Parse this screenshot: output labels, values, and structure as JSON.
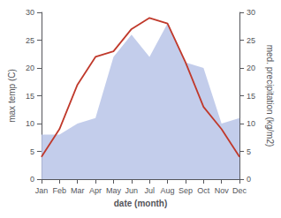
{
  "chart_data": {
    "type": "line",
    "categories": [
      "Jan",
      "Feb",
      "Mar",
      "Apr",
      "May",
      "Jun",
      "Jul",
      "Aug",
      "Sep",
      "Oct",
      "Nov",
      "Dec"
    ],
    "series": [
      {
        "type": "area",
        "axis": "y2",
        "color": "#b8c4e8",
        "values": [
          8,
          8,
          10,
          11,
          22,
          26,
          22,
          28,
          21,
          20,
          10,
          11
        ]
      },
      {
        "type": "line",
        "color": "#c0392b",
        "values": [
          4,
          9,
          17,
          22,
          23,
          27,
          29,
          28,
          21,
          13,
          9,
          4
        ]
      }
    ],
    "xlabel": "date (month)",
    "ylabel": "max temp (C)",
    "y2label": "med. precipitation (kg/m2)",
    "ylim": [
      0,
      30
    ],
    "yticks": [
      0,
      5,
      10,
      15,
      20,
      25,
      30
    ],
    "y2lim": [
      0,
      30
    ],
    "y2ticks": [
      0,
      5,
      10,
      15,
      20,
      25,
      30
    ],
    "grid": false
  }
}
